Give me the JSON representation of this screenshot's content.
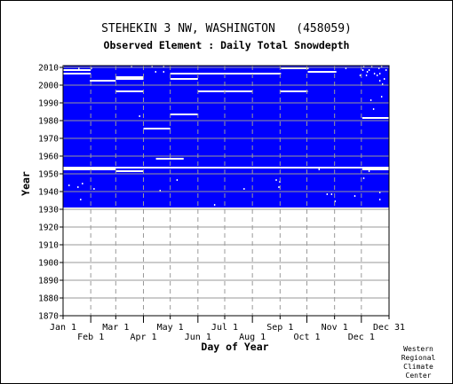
{
  "chart_data": {
    "type": "heatmap",
    "title": "STEHEKIN 3 NW, WASHINGTON   (458059)",
    "subtitle": "Observed Element : Daily Total Snowdepth",
    "xlabel": "Day of Year",
    "ylabel": "Year",
    "xlim": [
      1,
      365
    ],
    "ylim": [
      1870,
      2011
    ],
    "x_ticks_upper": [
      {
        "label": "Jan 1",
        "day": 1
      },
      {
        "label": "Mar 1",
        "day": 60
      },
      {
        "label": "May 1",
        "day": 121
      },
      {
        "label": "Jul 1",
        "day": 182
      },
      {
        "label": "Sep 1",
        "day": 244
      },
      {
        "label": "Nov 1",
        "day": 305
      },
      {
        "label": "Dec 31",
        "day": 365
      }
    ],
    "x_ticks_lower": [
      {
        "label": "Feb 1",
        "day": 32
      },
      {
        "label": "Apr 1",
        "day": 91
      },
      {
        "label": "Jun 1",
        "day": 152
      },
      {
        "label": "Aug 1",
        "day": 213
      },
      {
        "label": "Oct 1",
        "day": 274
      },
      {
        "label": "Dec 1",
        "day": 335
      }
    ],
    "y_ticks": [
      1870,
      1880,
      1890,
      1900,
      1910,
      1920,
      1930,
      1940,
      1950,
      1960,
      1970,
      1980,
      1990,
      2000,
      2010
    ],
    "grid": true,
    "data_color": "#0000ff",
    "missing_color": "#ffffff",
    "data_period": {
      "start_year": 1931,
      "end_year": 2010
    },
    "missing_segments": [
      {
        "year": 2010,
        "start_day": 1,
        "end_day": 1
      },
      {
        "year": 2009,
        "start_day": 245,
        "end_day": 275
      },
      {
        "year": 2008,
        "start_day": 1,
        "end_day": 31
      },
      {
        "year": 2007,
        "start_day": 275,
        "end_day": 306
      },
      {
        "year": 2006,
        "start_day": 1,
        "end_day": 31
      },
      {
        "year": 2006,
        "start_day": 121,
        "end_day": 244
      },
      {
        "year": 2004,
        "start_day": 60,
        "end_day": 90
      },
      {
        "year": 2003,
        "start_day": 60,
        "end_day": 90
      },
      {
        "year": 2003,
        "start_day": 121,
        "end_day": 151
      },
      {
        "year": 2002,
        "start_day": 31,
        "end_day": 59
      },
      {
        "year": 1996,
        "start_day": 60,
        "end_day": 90
      },
      {
        "year": 1996,
        "start_day": 152,
        "end_day": 212
      },
      {
        "year": 1996,
        "start_day": 244,
        "end_day": 274
      },
      {
        "year": 1983,
        "start_day": 121,
        "end_day": 151
      },
      {
        "year": 1981,
        "start_day": 336,
        "end_day": 365
      },
      {
        "year": 1975,
        "start_day": 91,
        "end_day": 120
      },
      {
        "year": 1958,
        "start_day": 105,
        "end_day": 135
      },
      {
        "year": 1953,
        "start_day": 1,
        "end_day": 365
      },
      {
        "year": 1952,
        "start_day": 1,
        "end_day": 59
      },
      {
        "year": 1952,
        "start_day": 336,
        "end_day": 365
      },
      {
        "year": 1951,
        "start_day": 60,
        "end_day": 90
      }
    ],
    "missing_days": [
      [
        2010,
        77
      ],
      [
        2010,
        100
      ],
      [
        2010,
        113
      ],
      [
        2010,
        337
      ],
      [
        2010,
        346
      ],
      [
        2010,
        357
      ],
      [
        2009,
        18
      ],
      [
        2009,
        32
      ],
      [
        2009,
        317
      ],
      [
        2009,
        354
      ],
      [
        2008,
        336
      ],
      [
        2008,
        343
      ],
      [
        2008,
        362
      ],
      [
        2007,
        104
      ],
      [
        2007,
        113
      ],
      [
        2007,
        341
      ],
      [
        2006,
        349
      ],
      [
        2006,
        355
      ],
      [
        2005,
        333
      ],
      [
        2005,
        340
      ],
      [
        2005,
        352
      ],
      [
        2003,
        360
      ],
      [
        2002,
        355
      ],
      [
        2000,
        358
      ],
      [
        1993,
        357
      ],
      [
        1991,
        345
      ],
      [
        1986,
        348
      ],
      [
        1982,
        86
      ],
      [
        1952,
        287
      ],
      [
        1951,
        343
      ],
      [
        1947,
        337
      ],
      [
        1946,
        128
      ],
      [
        1946,
        239
      ],
      [
        1945,
        243
      ],
      [
        1944,
        22
      ],
      [
        1943,
        7
      ],
      [
        1942,
        17
      ],
      [
        1942,
        242
      ],
      [
        1941,
        35
      ],
      [
        1941,
        203
      ],
      [
        1940,
        109
      ],
      [
        1939,
        355
      ],
      [
        1938,
        296
      ],
      [
        1938,
        301
      ],
      [
        1937,
        327
      ],
      [
        1935,
        20
      ],
      [
        1935,
        355
      ],
      [
        1934,
        305
      ],
      [
        1932,
        170
      ]
    ]
  },
  "credit": "Western\nRegional\nClimate\nCenter"
}
